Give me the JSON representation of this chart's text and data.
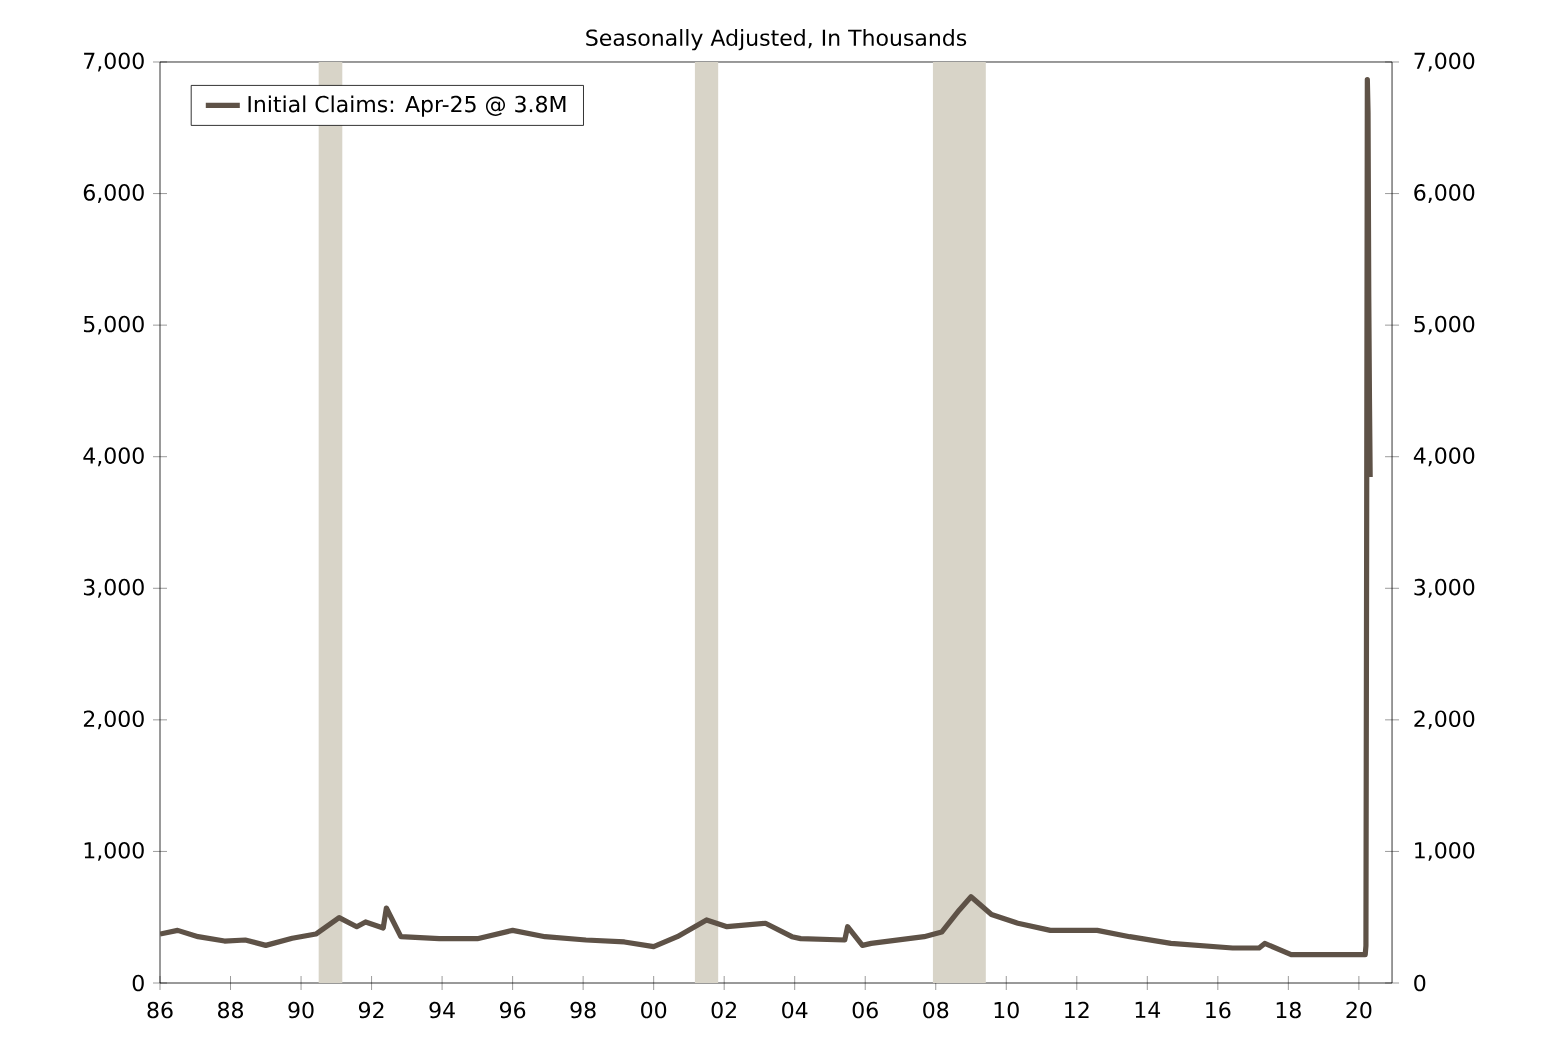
{
  "chart_data": {
    "type": "line",
    "title": "Seasonally Adjusted, In Thousands",
    "x": [
      "1986-01",
      "1986-07",
      "1987-02",
      "1987-11",
      "1988-06",
      "1989-01",
      "1989-10",
      "1990-06",
      "1991-02",
      "1991-08",
      "1991-11",
      "1992-05",
      "1992-06",
      "1992-11",
      "1993-12",
      "1995-01",
      "1996-01",
      "1996-12",
      "1998-02",
      "1999-03",
      "2000-01",
      "2000-09",
      "2001-07",
      "2002-02",
      "2003-03",
      "2003-12",
      "2004-03",
      "2005-06",
      "2005-07",
      "2005-12",
      "2006-03",
      "2007-09",
      "2008-03",
      "2008-09",
      "2009-01",
      "2009-08",
      "2010-05",
      "2011-04",
      "2012-08",
      "2013-07",
      "2014-09",
      "2016-06",
      "2017-03",
      "2017-05",
      "2018-02",
      "2020-03-07",
      "2020-03-14",
      "2020-03-21",
      "2020-03-28",
      "2020-04-04",
      "2020-04-11",
      "2020-04-18",
      "2020-04-25"
    ],
    "series": [
      {
        "name": "Initial Claims: Apr-25 @ 3.8M",
        "color": "#5e5247",
        "values": [
          372,
          400,
          352,
          319,
          327,
          286,
          340,
          372,
          497,
          428,
          464,
          418,
          570,
          352,
          337,
          337,
          400,
          352,
          327,
          312,
          276,
          352,
          479,
          428,
          454,
          352,
          337,
          327,
          428,
          286,
          301,
          352,
          387,
          555,
          656,
          520,
          454,
          400,
          400,
          352,
          301,
          266,
          266,
          301,
          215,
          215,
          282,
          3307,
          6867,
          6615,
          5237,
          4442,
          3846
        ]
      }
    ],
    "xlim": [
      "1986-01",
      "2020-12-10"
    ],
    "xticks": [
      {
        "value": "1986",
        "label": "86"
      },
      {
        "value": "1988",
        "label": "88"
      },
      {
        "value": "1990",
        "label": "90"
      },
      {
        "value": "1992",
        "label": "92"
      },
      {
        "value": "1994",
        "label": "94"
      },
      {
        "value": "1996",
        "label": "96"
      },
      {
        "value": "1998",
        "label": "98"
      },
      {
        "value": "2000",
        "label": "00"
      },
      {
        "value": "2002",
        "label": "02"
      },
      {
        "value": "2004",
        "label": "04"
      },
      {
        "value": "2006",
        "label": "06"
      },
      {
        "value": "2008",
        "label": "08"
      },
      {
        "value": "2010",
        "label": "10"
      },
      {
        "value": "2012",
        "label": "12"
      },
      {
        "value": "2014",
        "label": "14"
      },
      {
        "value": "2016",
        "label": "16"
      },
      {
        "value": "2018",
        "label": "18"
      },
      {
        "value": "2020",
        "label": "20"
      }
    ],
    "ylim": [
      0,
      7000
    ],
    "yticks": [
      0,
      {
        "value": 1000,
        "label": "1,000"
      },
      {
        "value": 2000,
        "label": "2,000"
      },
      {
        "value": 3000,
        "label": "3,000"
      },
      {
        "value": 4000,
        "label": "4,000"
      },
      {
        "value": 5000,
        "label": "5,000"
      },
      {
        "value": 6000,
        "label": "6,000"
      },
      {
        "value": 7000,
        "label": "7,000"
      }
    ],
    "y2lim": [
      0,
      7000
    ],
    "y2ticks": [
      0,
      {
        "value": 1000,
        "label": "1,000"
      },
      {
        "value": 2000,
        "label": "2,000"
      },
      {
        "value": 3000,
        "label": "3,000"
      },
      {
        "value": 4000,
        "label": "4,000"
      },
      {
        "value": 5000,
        "label": "5,000"
      },
      {
        "value": 6000,
        "label": "6,000"
      },
      {
        "value": 7000,
        "label": "7,000"
      }
    ],
    "bands": [
      {
        "axis": "x",
        "from": "1990-07",
        "to": "1991-03",
        "color": "#d8d4c8"
      },
      {
        "axis": "x",
        "from": "2001-03",
        "to": "2001-11",
        "color": "#d8d4c8"
      },
      {
        "axis": "x",
        "from": "2007-12",
        "to": "2009-06",
        "color": "#d8d4c8"
      }
    ],
    "grid": false,
    "legend": "top left",
    "marker": "none",
    "line_style": "solid"
  }
}
